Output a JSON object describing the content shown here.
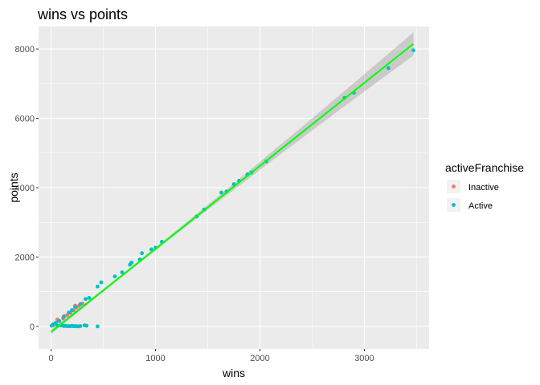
{
  "chart_data": {
    "type": "scatter",
    "title": "wins vs points",
    "xlabel": "wins",
    "ylabel": "points",
    "xlim": [
      -120,
      3620
    ],
    "ylim": [
      -650,
      8650
    ],
    "x_ticks": [
      0,
      1000,
      2000,
      3000
    ],
    "x_tick_labels": [
      "0",
      "1000",
      "2000",
      "3000"
    ],
    "y_ticks": [
      0,
      2000,
      4000,
      6000,
      8000
    ],
    "y_tick_labels": [
      "0",
      "2000",
      "4000",
      "6000",
      "8000"
    ],
    "x_minor_ticks": [
      500,
      1500,
      2500,
      3500
    ],
    "y_minor_ticks": [
      1000,
      3000,
      5000,
      7000
    ],
    "grid": true,
    "panel_background": "#ebebeb",
    "legend": {
      "title": "activeFranchise",
      "position": "right",
      "entries": [
        {
          "label": "Inactive",
          "color": "#f8766d"
        },
        {
          "label": "Active",
          "color": "#00bfc4"
        }
      ]
    },
    "series": [
      {
        "name": "Inactive",
        "color": "#f8766d",
        "points": [
          [
            20,
            30
          ],
          [
            45,
            80
          ],
          [
            80,
            150
          ],
          [
            115,
            230
          ],
          [
            155,
            320
          ],
          [
            185,
            390
          ],
          [
            215,
            460
          ],
          [
            245,
            540
          ],
          [
            265,
            590
          ],
          [
            300,
            660
          ],
          [
            60,
            200
          ],
          [
            130,
            300
          ],
          [
            230,
            600
          ]
        ]
      },
      {
        "name": "Active",
        "color": "#00bfc4",
        "points": [
          [
            5,
            20
          ],
          [
            20,
            60
          ],
          [
            45,
            100
          ],
          [
            60,
            20
          ],
          [
            75,
            160
          ],
          [
            95,
            30
          ],
          [
            110,
            20
          ],
          [
            125,
            10
          ],
          [
            140,
            15
          ],
          [
            155,
            5
          ],
          [
            170,
            10
          ],
          [
            185,
            5
          ],
          [
            200,
            15
          ],
          [
            215,
            5
          ],
          [
            230,
            10
          ],
          [
            245,
            5
          ],
          [
            260,
            0
          ],
          [
            280,
            10
          ],
          [
            320,
            30
          ],
          [
            340,
            20
          ],
          [
            445,
            0
          ],
          [
            120,
            280
          ],
          [
            170,
            400
          ],
          [
            200,
            470
          ],
          [
            230,
            560
          ],
          [
            280,
            640
          ],
          [
            330,
            790
          ],
          [
            365,
            820
          ],
          [
            445,
            1150
          ],
          [
            480,
            1270
          ],
          [
            610,
            1440
          ],
          [
            680,
            1560
          ],
          [
            755,
            1780
          ],
          [
            770,
            1840
          ],
          [
            850,
            1930
          ],
          [
            870,
            2110
          ],
          [
            960,
            2220
          ],
          [
            1000,
            2270
          ],
          [
            1060,
            2440
          ],
          [
            1395,
            3170
          ],
          [
            1465,
            3370
          ],
          [
            1630,
            3860
          ],
          [
            1680,
            3890
          ],
          [
            1750,
            4100
          ],
          [
            1800,
            4200
          ],
          [
            1880,
            4380
          ],
          [
            1920,
            4440
          ],
          [
            2060,
            4760
          ],
          [
            2810,
            6590
          ],
          [
            2900,
            6740
          ],
          [
            3230,
            7450
          ],
          [
            3470,
            7960
          ]
        ]
      }
    ],
    "fit_line": {
      "color": "#00ff00",
      "x": [
        0,
        3470
      ],
      "y": [
        -160,
        8150
      ]
    }
  }
}
